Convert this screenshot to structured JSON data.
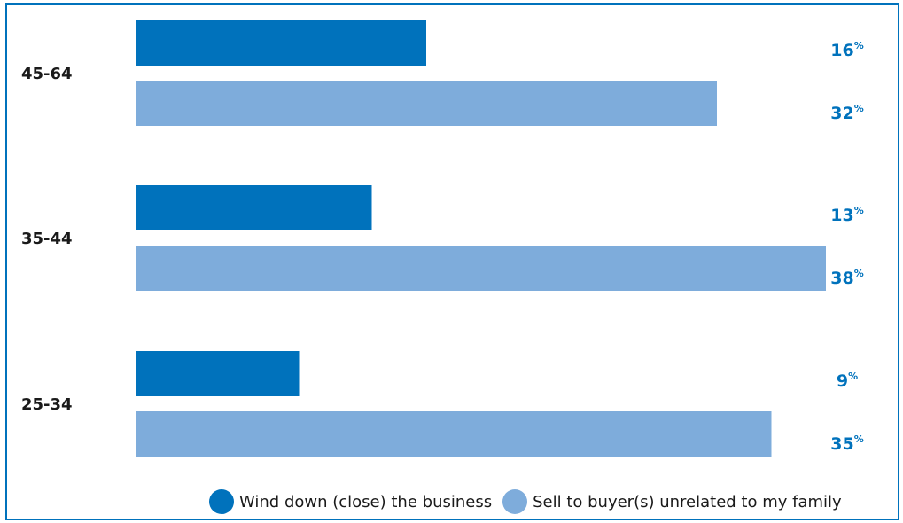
{
  "chart_data": {
    "type": "bar",
    "orientation": "horizontal",
    "categories": [
      "45-64",
      "35-44",
      "25-34"
    ],
    "series": [
      {
        "name": "Wind down (close) the business",
        "values": [
          16,
          13,
          9
        ],
        "color": "#0072bc"
      },
      {
        "name": "Sell to buyer(s) unrelated to my family",
        "values": [
          32,
          38,
          35
        ],
        "color": "#7eacdb"
      }
    ],
    "value_suffix": "%",
    "xlim": [
      0,
      40
    ],
    "grid": false,
    "legend_position": "bottom-right"
  }
}
